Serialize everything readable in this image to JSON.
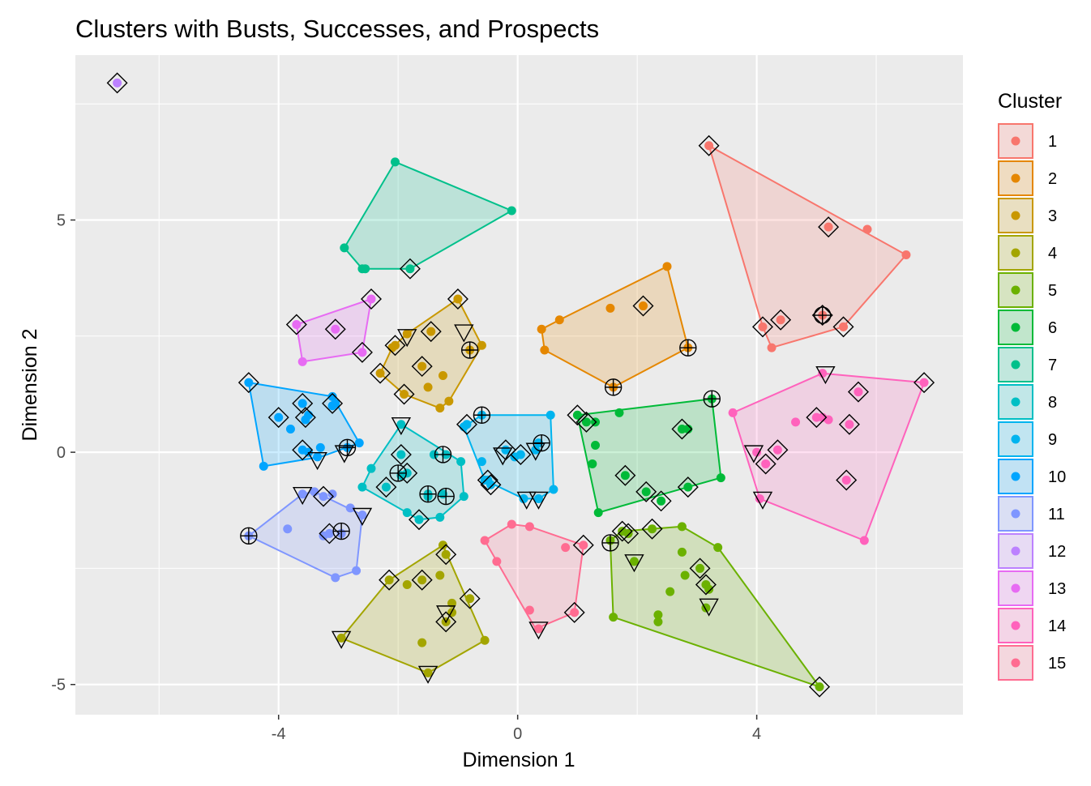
{
  "chart_data": {
    "type": "scatter",
    "title": "Clusters with Busts, Successes, and Prospects",
    "xlabel": "Dimension 1",
    "ylabel": "Dimension 2",
    "xlim": [
      -7.4,
      7.45
    ],
    "ylim": [
      -5.65,
      8.55
    ],
    "xticks": [
      -4,
      0,
      4
    ],
    "xtick_labels": [
      "-4",
      "0",
      "4"
    ],
    "yticks": [
      -5,
      0,
      5
    ],
    "ytick_labels": [
      "-5",
      "0",
      "5"
    ],
    "grid": true,
    "legend_title": "Cluster",
    "legend_position": "right",
    "series": [
      {
        "name": "1",
        "color": "#F8766D",
        "hull": [
          [
            3.2,
            6.6
          ],
          [
            6.5,
            4.25
          ],
          [
            5.45,
            2.7
          ],
          [
            4.25,
            2.25
          ],
          [
            4.1,
            2.7
          ]
        ],
        "points": [
          [
            3.2,
            6.6
          ],
          [
            5.2,
            4.85
          ],
          [
            5.85,
            4.8
          ],
          [
            6.5,
            4.25
          ],
          [
            5.1,
            2.95
          ],
          [
            4.1,
            2.7
          ],
          [
            4.4,
            2.85
          ],
          [
            5.45,
            2.7
          ],
          [
            4.25,
            2.25
          ]
        ]
      },
      {
        "name": "2",
        "color": "#E58700",
        "hull": [
          [
            2.5,
            4.0
          ],
          [
            2.85,
            2.25
          ],
          [
            1.6,
            1.4
          ],
          [
            0.45,
            2.2
          ],
          [
            0.4,
            2.65
          ],
          [
            0.7,
            2.85
          ]
        ],
        "points": [
          [
            2.5,
            4.0
          ],
          [
            2.1,
            3.15
          ],
          [
            1.55,
            3.1
          ],
          [
            0.7,
            2.85
          ],
          [
            0.4,
            2.65
          ],
          [
            0.45,
            2.2
          ],
          [
            2.85,
            2.25
          ],
          [
            1.6,
            1.4
          ]
        ]
      },
      {
        "name": "3",
        "color": "#C99800",
        "hull": [
          [
            -1.0,
            3.3
          ],
          [
            -0.6,
            2.3
          ],
          [
            -1.15,
            1.1
          ],
          [
            -1.3,
            0.95
          ],
          [
            -1.9,
            1.25
          ],
          [
            -2.3,
            1.7
          ],
          [
            -2.1,
            2.25
          ],
          [
            -1.85,
            2.55
          ]
        ],
        "points": [
          [
            -1.0,
            3.3
          ],
          [
            -1.45,
            2.6
          ],
          [
            -1.85,
            2.55
          ],
          [
            -2.05,
            2.3
          ],
          [
            -0.6,
            2.3
          ],
          [
            -0.8,
            2.2
          ],
          [
            -1.6,
            1.85
          ],
          [
            -1.25,
            1.65
          ],
          [
            -2.3,
            1.7
          ],
          [
            -1.5,
            1.4
          ],
          [
            -1.9,
            1.25
          ],
          [
            -1.15,
            1.1
          ],
          [
            -1.3,
            0.95
          ],
          [
            -2.1,
            2.25
          ]
        ]
      },
      {
        "name": "4",
        "color": "#A3A500",
        "hull": [
          [
            -1.25,
            -2.0
          ],
          [
            -0.55,
            -4.05
          ],
          [
            -1.5,
            -4.75
          ],
          [
            -2.95,
            -4.0
          ],
          [
            -2.15,
            -2.75
          ]
        ],
        "points": [
          [
            -1.25,
            -2.0
          ],
          [
            -1.2,
            -2.2
          ],
          [
            -2.15,
            -2.75
          ],
          [
            -1.6,
            -2.75
          ],
          [
            -1.3,
            -2.65
          ],
          [
            -1.85,
            -2.85
          ],
          [
            -1.1,
            -3.25
          ],
          [
            -0.8,
            -3.15
          ],
          [
            -1.1,
            -3.45
          ],
          [
            -1.2,
            -3.65
          ],
          [
            -0.55,
            -4.05
          ],
          [
            -1.6,
            -4.1
          ],
          [
            -1.5,
            -4.75
          ],
          [
            -2.95,
            -4.0
          ]
        ]
      },
      {
        "name": "5",
        "color": "#6BB100",
        "hull": [
          [
            2.75,
            -1.6
          ],
          [
            3.35,
            -2.05
          ],
          [
            5.05,
            -5.05
          ],
          [
            1.6,
            -3.55
          ],
          [
            1.55,
            -1.9
          ],
          [
            1.75,
            -1.7
          ]
        ],
        "points": [
          [
            2.75,
            -1.6
          ],
          [
            2.25,
            -1.65
          ],
          [
            1.75,
            -1.7
          ],
          [
            1.85,
            -1.75
          ],
          [
            3.35,
            -2.05
          ],
          [
            2.75,
            -2.15
          ],
          [
            1.95,
            -2.35
          ],
          [
            3.05,
            -2.5
          ],
          [
            2.8,
            -2.65
          ],
          [
            3.15,
            -2.85
          ],
          [
            3.2,
            -2.95
          ],
          [
            2.55,
            -3.0
          ],
          [
            3.15,
            -3.35
          ],
          [
            2.35,
            -3.5
          ],
          [
            2.35,
            -3.65
          ],
          [
            1.6,
            -3.55
          ],
          [
            5.05,
            -5.05
          ],
          [
            1.55,
            -1.9
          ]
        ]
      },
      {
        "name": "6",
        "color": "#00BA38",
        "hull": [
          [
            3.25,
            1.15
          ],
          [
            3.4,
            -0.55
          ],
          [
            2.85,
            -0.75
          ],
          [
            1.35,
            -1.3
          ],
          [
            1.0,
            0.8
          ]
        ],
        "points": [
          [
            3.25,
            1.15
          ],
          [
            1.0,
            0.8
          ],
          [
            1.7,
            0.85
          ],
          [
            1.15,
            0.65
          ],
          [
            1.3,
            0.65
          ],
          [
            2.75,
            0.5
          ],
          [
            2.85,
            0.5
          ],
          [
            1.3,
            0.15
          ],
          [
            1.25,
            -0.25
          ],
          [
            1.8,
            -0.5
          ],
          [
            2.85,
            -0.75
          ],
          [
            3.4,
            -0.55
          ],
          [
            2.15,
            -0.85
          ],
          [
            2.4,
            -1.05
          ],
          [
            1.35,
            -1.3
          ]
        ]
      },
      {
        "name": "7",
        "color": "#00C08B",
        "hull": [
          [
            -2.05,
            6.25
          ],
          [
            -0.1,
            5.2
          ],
          [
            -1.8,
            3.95
          ],
          [
            -2.6,
            3.95
          ],
          [
            -2.9,
            4.4
          ]
        ],
        "points": [
          [
            -2.05,
            6.25
          ],
          [
            -0.1,
            5.2
          ],
          [
            -2.9,
            4.4
          ],
          [
            -2.6,
            3.95
          ],
          [
            -2.55,
            3.95
          ],
          [
            -1.8,
            3.95
          ]
        ]
      },
      {
        "name": "8",
        "color": "#00BFC4",
        "hull": [
          [
            -1.95,
            0.6
          ],
          [
            -0.95,
            -0.2
          ],
          [
            -0.9,
            -0.95
          ],
          [
            -1.3,
            -1.4
          ],
          [
            -1.65,
            -1.45
          ],
          [
            -2.6,
            -0.75
          ],
          [
            -2.45,
            -0.35
          ]
        ],
        "points": [
          [
            -1.95,
            0.6
          ],
          [
            -1.2,
            -0.05
          ],
          [
            -1.95,
            -0.05
          ],
          [
            -1.95,
            -0.5
          ],
          [
            -2.45,
            -0.35
          ],
          [
            -1.85,
            -0.45
          ],
          [
            -0.95,
            -0.2
          ],
          [
            -1.5,
            -0.9
          ],
          [
            -1.5,
            -0.95
          ],
          [
            -2.2,
            -0.75
          ],
          [
            -2.6,
            -0.75
          ],
          [
            -0.9,
            -0.95
          ],
          [
            -1.85,
            -1.3
          ],
          [
            -1.65,
            -1.45
          ],
          [
            -1.3,
            -1.4
          ],
          [
            -1.4,
            -0.05
          ],
          [
            -1.25,
            -0.9
          ]
        ]
      },
      {
        "name": "9",
        "color": "#00B4EF",
        "hull": [
          [
            -0.6,
            0.8
          ],
          [
            0.55,
            0.8
          ],
          [
            0.6,
            -0.8
          ],
          [
            0.35,
            -1.0
          ],
          [
            0.1,
            -1.0
          ],
          [
            -0.55,
            -0.6
          ],
          [
            -0.9,
            0.55
          ]
        ],
        "points": [
          [
            -0.6,
            0.8
          ],
          [
            0.55,
            0.8
          ],
          [
            -0.85,
            0.6
          ],
          [
            -0.9,
            0.55
          ],
          [
            0.35,
            0.2
          ],
          [
            -0.2,
            0.05
          ],
          [
            0.05,
            -0.05
          ],
          [
            -0.05,
            -0.1
          ],
          [
            -0.6,
            -0.2
          ],
          [
            -0.5,
            -0.6
          ],
          [
            -0.55,
            -0.6
          ],
          [
            -0.45,
            -0.7
          ],
          [
            0.6,
            -0.8
          ],
          [
            0.1,
            -1.0
          ],
          [
            0.35,
            -1.0
          ],
          [
            0.3,
            0.05
          ]
        ]
      },
      {
        "name": "10",
        "color": "#00A5FF",
        "hull": [
          [
            -4.5,
            1.5
          ],
          [
            -3.1,
            1.2
          ],
          [
            -2.65,
            0.2
          ],
          [
            -3.3,
            -0.1
          ],
          [
            -4.25,
            -0.3
          ]
        ],
        "points": [
          [
            -4.5,
            1.5
          ],
          [
            -3.6,
            1.05
          ],
          [
            -3.1,
            1.2
          ],
          [
            -3.1,
            1.0
          ],
          [
            -3.05,
            1.05
          ],
          [
            -4.0,
            0.75
          ],
          [
            -3.5,
            0.8
          ],
          [
            -3.55,
            0.7
          ],
          [
            -3.8,
            0.5
          ],
          [
            -2.65,
            0.2
          ],
          [
            -3.6,
            0.05
          ],
          [
            -3.3,
            0.1
          ],
          [
            -2.85,
            0.1
          ],
          [
            -3.35,
            -0.1
          ],
          [
            -4.25,
            -0.3
          ],
          [
            -3.5,
            0.0
          ]
        ]
      },
      {
        "name": "11",
        "color": "#7F96FF",
        "hull": [
          [
            -3.4,
            -0.85
          ],
          [
            -2.6,
            -1.35
          ],
          [
            -2.7,
            -2.55
          ],
          [
            -3.05,
            -2.7
          ],
          [
            -4.5,
            -1.8
          ],
          [
            -3.6,
            -0.9
          ]
        ],
        "points": [
          [
            -3.6,
            -0.9
          ],
          [
            -3.4,
            -0.85
          ],
          [
            -3.1,
            -0.9
          ],
          [
            -3.25,
            -0.95
          ],
          [
            -2.6,
            -1.35
          ],
          [
            -2.8,
            -1.2
          ],
          [
            -3.85,
            -1.65
          ],
          [
            -3.25,
            -1.8
          ],
          [
            -3.15,
            -1.75
          ],
          [
            -2.95,
            -1.75
          ],
          [
            -4.5,
            -1.8
          ],
          [
            -2.7,
            -2.55
          ],
          [
            -3.05,
            -2.7
          ]
        ]
      },
      {
        "name": "12",
        "color": "#BC81FF",
        "hull": [],
        "points": [
          [
            -6.7,
            7.95
          ]
        ]
      },
      {
        "name": "13",
        "color": "#E76BF3",
        "hull": [
          [
            -2.45,
            3.3
          ],
          [
            -2.6,
            2.15
          ],
          [
            -3.6,
            1.95
          ],
          [
            -3.7,
            2.75
          ]
        ],
        "points": [
          [
            -2.45,
            3.3
          ],
          [
            -3.7,
            2.75
          ],
          [
            -3.05,
            2.65
          ],
          [
            -2.6,
            2.15
          ],
          [
            -3.6,
            1.95
          ]
        ]
      },
      {
        "name": "14",
        "color": "#FF62BC",
        "hull": [
          [
            5.1,
            1.7
          ],
          [
            6.8,
            1.5
          ],
          [
            5.8,
            -1.9
          ],
          [
            4.05,
            -1.0
          ],
          [
            3.6,
            0.85
          ]
        ],
        "points": [
          [
            5.1,
            1.7
          ],
          [
            6.8,
            1.5
          ],
          [
            5.7,
            1.3
          ],
          [
            3.6,
            0.85
          ],
          [
            5.0,
            0.75
          ],
          [
            5.1,
            0.75
          ],
          [
            5.2,
            0.7
          ],
          [
            4.65,
            0.65
          ],
          [
            5.55,
            0.6
          ],
          [
            4.35,
            0.05
          ],
          [
            4.0,
            0.0
          ],
          [
            4.15,
            -0.25
          ],
          [
            5.5,
            -0.6
          ],
          [
            4.05,
            -1.0
          ],
          [
            5.8,
            -1.9
          ]
        ]
      },
      {
        "name": "15",
        "color": "#FF6C91",
        "hull": [
          [
            -0.1,
            -1.55
          ],
          [
            0.2,
            -1.6
          ],
          [
            1.1,
            -2.0
          ],
          [
            0.95,
            -3.45
          ],
          [
            0.3,
            -3.8
          ],
          [
            -0.55,
            -1.9
          ]
        ],
        "points": [
          [
            -0.1,
            -1.55
          ],
          [
            0.2,
            -1.6
          ],
          [
            1.1,
            -2.0
          ],
          [
            0.8,
            -2.05
          ],
          [
            -0.55,
            -1.9
          ],
          [
            -0.35,
            -2.35
          ],
          [
            0.2,
            -3.4
          ],
          [
            0.95,
            -3.45
          ],
          [
            0.35,
            -3.8
          ]
        ]
      }
    ],
    "busts": [
      [
        5.15,
        1.7
      ],
      [
        3.95,
        0.0
      ],
      [
        4.1,
        -1.0
      ],
      [
        1.95,
        -2.35
      ],
      [
        3.2,
        -3.3
      ],
      [
        0.35,
        -3.8
      ],
      [
        -1.5,
        -4.75
      ],
      [
        -2.95,
        -4.0
      ],
      [
        -1.2,
        -3.45
      ],
      [
        -2.6,
        -1.35
      ],
      [
        -3.6,
        -0.9
      ],
      [
        -3.35,
        -0.15
      ],
      [
        -2.9,
        0.0
      ],
      [
        -1.95,
        0.6
      ],
      [
        -0.9,
        2.6
      ],
      [
        -1.85,
        2.5
      ],
      [
        -0.25,
        -0.05
      ],
      [
        0.15,
        -1.0
      ],
      [
        0.35,
        -1.0
      ],
      [
        0.3,
        0.05
      ]
    ],
    "successes": [
      [
        5.1,
        2.95
      ],
      [
        2.85,
        2.25
      ],
      [
        1.6,
        1.4
      ],
      [
        3.25,
        1.15
      ],
      [
        1.55,
        -1.95
      ],
      [
        -0.8,
        2.2
      ],
      [
        -0.6,
        0.8
      ],
      [
        0.4,
        0.2
      ],
      [
        -1.25,
        -0.05
      ],
      [
        -2.0,
        -0.45
      ],
      [
        -1.5,
        -0.9
      ],
      [
        -1.2,
        -0.95
      ],
      [
        -2.85,
        0.1
      ],
      [
        -2.95,
        -1.7
      ],
      [
        -4.5,
        -1.8
      ]
    ]
  }
}
